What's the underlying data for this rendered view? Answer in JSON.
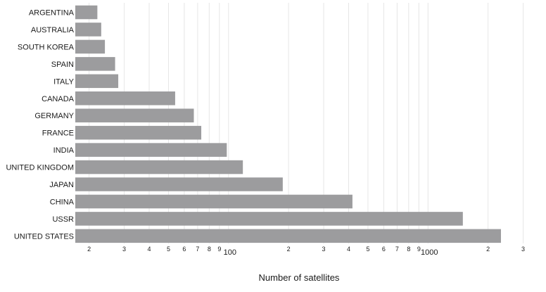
{
  "chart_data": {
    "type": "bar",
    "orientation": "horizontal",
    "categories": [
      "ARGENTINA",
      "AUSTRALIA",
      "SOUTH KOREA",
      "SPAIN",
      "ITALY",
      "CANADA",
      "GERMANY",
      "FRANCE",
      "INDIA",
      "UNITED KINGDOM",
      "JAPAN",
      "CHINA",
      "USSR",
      "UNITED STATES"
    ],
    "values": [
      22,
      23,
      24,
      27,
      28,
      54,
      67,
      73,
      98,
      118,
      187,
      418,
      1495,
      2321
    ],
    "xlabel": "Number of satellites",
    "ylabel": "",
    "title": "",
    "xscale": "log",
    "xlim": [
      15,
      3200
    ],
    "xticks": [
      {
        "value": 20,
        "label": "2"
      },
      {
        "value": 30,
        "label": "3"
      },
      {
        "value": 40,
        "label": "4"
      },
      {
        "value": 50,
        "label": "5"
      },
      {
        "value": 60,
        "label": "6"
      },
      {
        "value": 70,
        "label": "7"
      },
      {
        "value": 80,
        "label": "8"
      },
      {
        "value": 90,
        "label": "9"
      },
      {
        "value": 100,
        "label": "100"
      },
      {
        "value": 200,
        "label": "2"
      },
      {
        "value": 300,
        "label": "3"
      },
      {
        "value": 400,
        "label": "4"
      },
      {
        "value": 500,
        "label": "5"
      },
      {
        "value": 600,
        "label": "6"
      },
      {
        "value": 700,
        "label": "7"
      },
      {
        "value": 800,
        "label": "8"
      },
      {
        "value": 900,
        "label": "9"
      },
      {
        "value": 1000,
        "label": "1000"
      },
      {
        "value": 2000,
        "label": "2"
      },
      {
        "value": 3000,
        "label": "3"
      }
    ],
    "grid": true,
    "legend": "none",
    "bar_color": "#9c9c9e",
    "grid_color": "#e6e6e6"
  }
}
